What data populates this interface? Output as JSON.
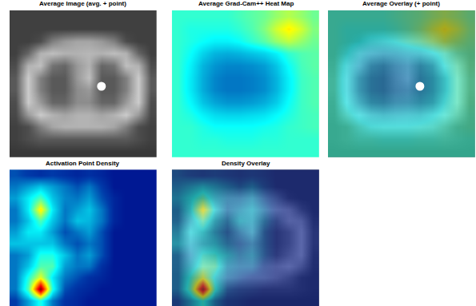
{
  "chart_data": [
    {
      "type": "heatmap",
      "title": "Average Image (avg. + point)",
      "color": "gray",
      "tick_labels": false,
      "zlim": [
        0,
        1
      ],
      "point": {
        "x": 7,
        "y": 5.7
      },
      "z": [
        [
          0.25,
          0.25,
          0.25,
          0.25,
          0.25,
          0.25,
          0.25,
          0.25,
          0.25,
          0.25,
          0.25,
          0.25
        ],
        [
          0.25,
          0.25,
          0.25,
          0.25,
          0.25,
          0.25,
          0.25,
          0.25,
          0.25,
          0.25,
          0.25,
          0.25
        ],
        [
          0.25,
          0.25,
          0.3,
          0.5,
          0.6,
          0.65,
          0.65,
          0.6,
          0.5,
          0.3,
          0.25,
          0.25
        ],
        [
          0.25,
          0.4,
          0.7,
          0.75,
          0.7,
          0.7,
          0.72,
          0.7,
          0.75,
          0.7,
          0.4,
          0.25
        ],
        [
          0.3,
          0.7,
          0.75,
          0.45,
          0.4,
          0.6,
          0.7,
          0.4,
          0.45,
          0.75,
          0.7,
          0.3
        ],
        [
          0.35,
          0.8,
          0.5,
          0.35,
          0.35,
          0.6,
          0.75,
          0.35,
          0.35,
          0.5,
          0.8,
          0.35
        ],
        [
          0.35,
          0.8,
          0.5,
          0.35,
          0.35,
          0.55,
          0.6,
          0.35,
          0.35,
          0.5,
          0.8,
          0.35
        ],
        [
          0.3,
          0.8,
          0.6,
          0.4,
          0.4,
          0.55,
          0.55,
          0.4,
          0.4,
          0.6,
          0.8,
          0.3
        ],
        [
          0.28,
          0.6,
          0.8,
          0.7,
          0.65,
          0.7,
          0.7,
          0.65,
          0.7,
          0.8,
          0.6,
          0.28
        ],
        [
          0.25,
          0.3,
          0.5,
          0.65,
          0.7,
          0.7,
          0.7,
          0.7,
          0.65,
          0.5,
          0.3,
          0.25
        ],
        [
          0.25,
          0.3,
          0.35,
          0.35,
          0.35,
          0.35,
          0.35,
          0.35,
          0.35,
          0.35,
          0.3,
          0.25
        ],
        [
          0.22,
          0.22,
          0.22,
          0.22,
          0.22,
          0.22,
          0.22,
          0.22,
          0.22,
          0.22,
          0.22,
          0.22
        ]
      ]
    },
    {
      "type": "heatmap",
      "title": "Average Grad-Cam++ Heat Map",
      "color": "jet",
      "tick_labels": false,
      "zlim": [
        0,
        1
      ],
      "z": [
        [
          0.42,
          0.42,
          0.42,
          0.42,
          0.42,
          0.44,
          0.46,
          0.48,
          0.52,
          0.55,
          0.52,
          0.48
        ],
        [
          0.42,
          0.4,
          0.4,
          0.4,
          0.4,
          0.42,
          0.45,
          0.5,
          0.58,
          0.64,
          0.58,
          0.5
        ],
        [
          0.42,
          0.4,
          0.38,
          0.36,
          0.36,
          0.38,
          0.42,
          0.46,
          0.52,
          0.56,
          0.52,
          0.48
        ],
        [
          0.42,
          0.38,
          0.32,
          0.28,
          0.27,
          0.28,
          0.3,
          0.32,
          0.36,
          0.42,
          0.45,
          0.46
        ],
        [
          0.42,
          0.36,
          0.28,
          0.24,
          0.22,
          0.22,
          0.23,
          0.25,
          0.3,
          0.38,
          0.44,
          0.46
        ],
        [
          0.42,
          0.35,
          0.27,
          0.22,
          0.2,
          0.2,
          0.21,
          0.23,
          0.28,
          0.36,
          0.43,
          0.45
        ],
        [
          0.42,
          0.35,
          0.27,
          0.22,
          0.2,
          0.2,
          0.21,
          0.23,
          0.28,
          0.36,
          0.43,
          0.45
        ],
        [
          0.42,
          0.37,
          0.3,
          0.26,
          0.24,
          0.24,
          0.25,
          0.27,
          0.31,
          0.38,
          0.43,
          0.45
        ],
        [
          0.42,
          0.4,
          0.36,
          0.33,
          0.32,
          0.32,
          0.33,
          0.34,
          0.37,
          0.4,
          0.43,
          0.44
        ],
        [
          0.42,
          0.42,
          0.4,
          0.38,
          0.38,
          0.38,
          0.38,
          0.39,
          0.4,
          0.42,
          0.43,
          0.44
        ],
        [
          0.42,
          0.42,
          0.41,
          0.41,
          0.4,
          0.4,
          0.4,
          0.41,
          0.41,
          0.42,
          0.42,
          0.42
        ],
        [
          0.42,
          0.42,
          0.42,
          0.42,
          0.42,
          0.42,
          0.42,
          0.42,
          0.42,
          0.42,
          0.42,
          0.42
        ]
      ]
    },
    {
      "type": "overlay",
      "title": "Average Overlay (+ point)",
      "tick_labels": false,
      "point": {
        "x": 7,
        "y": 5.7
      }
    },
    {
      "type": "heatmap",
      "title": "Activation Point Density",
      "color": "jet",
      "tick_labels": false,
      "zlim": [
        0,
        1
      ],
      "z": [
        [
          0.15,
          0.12,
          0.1,
          0.12,
          0.1,
          0.08,
          0.1,
          0.08,
          0.05,
          0.05,
          0.05,
          0.05
        ],
        [
          0.2,
          0.25,
          0.3,
          0.25,
          0.2,
          0.15,
          0.2,
          0.12,
          0.05,
          0.05,
          0.05,
          0.05
        ],
        [
          0.25,
          0.35,
          0.45,
          0.3,
          0.22,
          0.2,
          0.25,
          0.15,
          0.08,
          0.05,
          0.05,
          0.05
        ],
        [
          0.2,
          0.35,
          0.65,
          0.35,
          0.2,
          0.25,
          0.3,
          0.2,
          0.08,
          0.05,
          0.05,
          0.05
        ],
        [
          0.2,
          0.3,
          0.45,
          0.3,
          0.2,
          0.3,
          0.28,
          0.2,
          0.08,
          0.05,
          0.05,
          0.05
        ],
        [
          0.25,
          0.35,
          0.35,
          0.25,
          0.15,
          0.2,
          0.25,
          0.15,
          0.05,
          0.05,
          0.05,
          0.05
        ],
        [
          0.3,
          0.3,
          0.3,
          0.3,
          0.2,
          0.15,
          0.2,
          0.15,
          0.05,
          0.05,
          0.05,
          0.05
        ],
        [
          0.2,
          0.25,
          0.4,
          0.4,
          0.3,
          0.2,
          0.25,
          0.15,
          0.05,
          0.05,
          0.05,
          0.05
        ],
        [
          0.2,
          0.3,
          0.45,
          0.45,
          0.25,
          0.2,
          0.2,
          0.1,
          0.05,
          0.05,
          0.05,
          0.05
        ],
        [
          0.2,
          0.4,
          0.6,
          0.35,
          0.2,
          0.15,
          0.1,
          0.08,
          0.05,
          0.05,
          0.05,
          0.05
        ],
        [
          0.2,
          0.45,
          1.0,
          0.4,
          0.15,
          0.1,
          0.08,
          0.05,
          0.05,
          0.05,
          0.05,
          0.05
        ],
        [
          0.12,
          0.25,
          0.4,
          0.2,
          0.1,
          0.08,
          0.05,
          0.05,
          0.05,
          0.05,
          0.05,
          0.05
        ]
      ]
    },
    {
      "type": "overlay",
      "title": "Density Overlay",
      "tick_labels": false
    }
  ]
}
